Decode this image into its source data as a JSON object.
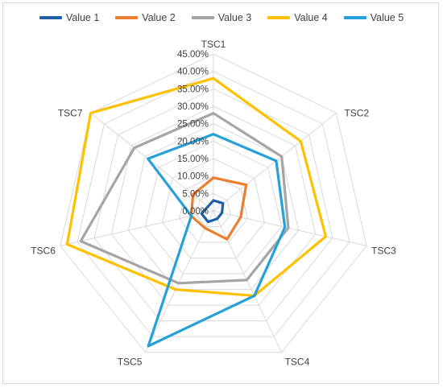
{
  "chart_data": {
    "type": "radar",
    "categories": [
      "TSC1",
      "TSC2",
      "TSC3",
      "TSC4",
      "TSC5",
      "TSC6",
      "TSC7"
    ],
    "ticks": [
      "0.00%",
      "5.00%",
      "10.00%",
      "15.00%",
      "20.00%",
      "25.00%",
      "30.00%",
      "35.00%",
      "40.00%",
      "45.00%"
    ],
    "range": [
      0,
      45
    ],
    "unit": "%",
    "grid": true,
    "legend_position": "top",
    "series": [
      {
        "name": "Value 1",
        "color": "#1f5fa8",
        "values": [
          3.0,
          3.5,
          2.5,
          2.5,
          3.5,
          3.5,
          2.0
        ]
      },
      {
        "name": "Value 2",
        "color": "#ed7d31",
        "values": [
          9.5,
          12.0,
          8.0,
          9.0,
          5.5,
          6.5,
          7.5
        ]
      },
      {
        "name": "Value 3",
        "color": "#a5a5a5",
        "values": [
          28.0,
          25.0,
          22.0,
          22.0,
          23.0,
          39.0,
          29.0
        ]
      },
      {
        "name": "Value 4",
        "color": "#ffc000",
        "values": [
          38.0,
          32.0,
          33.0,
          27.0,
          25.0,
          43.0,
          45.0
        ]
      },
      {
        "name": "Value 5",
        "color": "#26a0d8",
        "values": [
          22.0,
          23.0,
          21.0,
          27.0,
          43.0,
          6.5,
          24.0
        ]
      }
    ]
  }
}
